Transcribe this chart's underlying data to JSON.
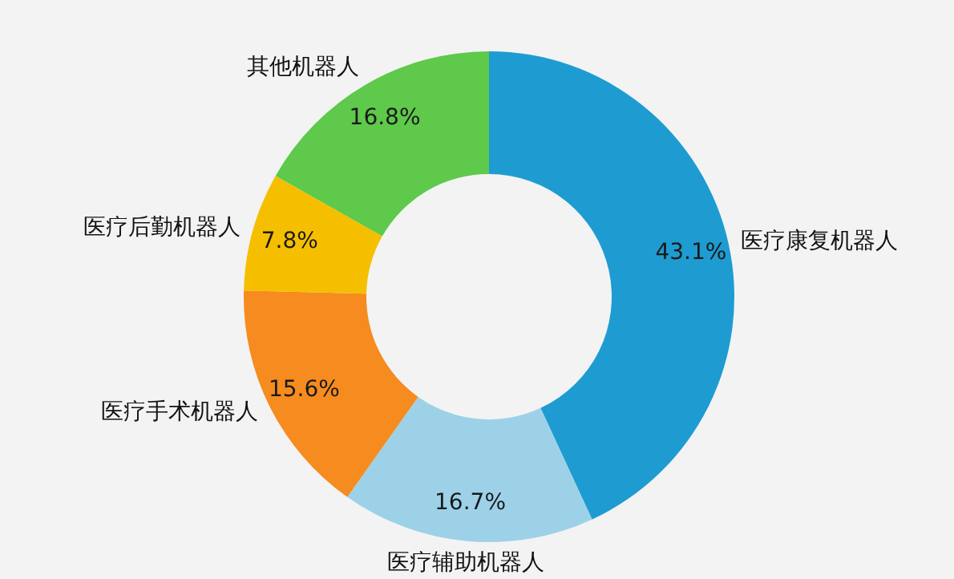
{
  "chart_data": {
    "type": "donut",
    "categories": [
      "医疗康复机器人",
      "医疗辅助机器人",
      "医疗手术机器人",
      "医疗后勤机器人",
      "其他机器人"
    ],
    "values": [
      43.1,
      16.7,
      15.6,
      7.8,
      16.8
    ],
    "value_labels": [
      "43.1%",
      "16.7%",
      "15.6%",
      "7.8%",
      "16.8%"
    ],
    "colors": [
      "#1e9cd2",
      "#9dd1e8",
      "#f68b1f",
      "#f5bf00",
      "#5ec94a"
    ]
  }
}
